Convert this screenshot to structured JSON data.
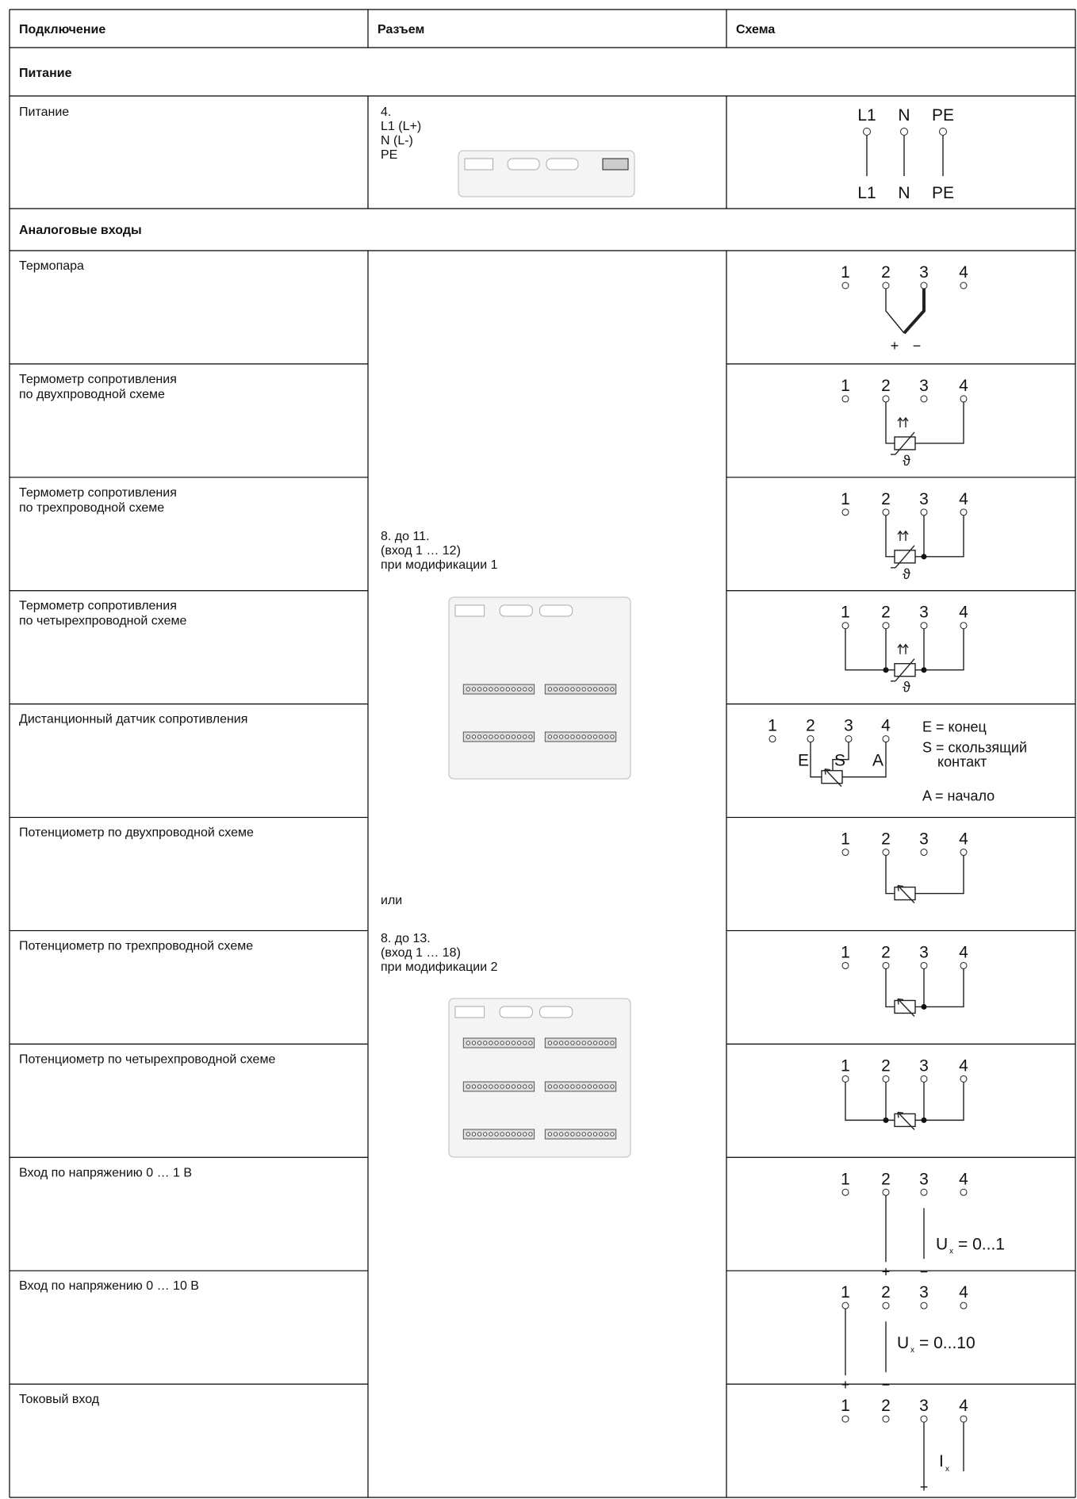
{
  "header": [
    "Подключение",
    "Разъем",
    "Схема"
  ],
  "sections": [
    {
      "title": "Питание",
      "rows": [
        {
          "connection": [
            "Питание"
          ],
          "connector": [
            "4.",
            "L1 (L+)",
            "N (L-)",
            "PE"
          ],
          "schema": {
            "top": [
              "L1",
              "N",
              "PE"
            ],
            "bottom": [
              "L1",
              "N",
              "PE"
            ]
          }
        }
      ]
    },
    {
      "title": "Аналоговые входы",
      "connector": [
        "8. до 11.",
        "(вход 1 … 12)",
        "при модификации 1",
        "или",
        "8. до 13.",
        "(вход 1 … 18)",
        "при модификации 2"
      ],
      "rows": [
        {
          "connection": [
            "Термопара"
          ],
          "schema": {
            "terminals": [
              "1",
              "2",
              "3",
              "4"
            ],
            "labels": [
              "+",
              "−"
            ]
          }
        },
        {
          "connection": [
            "Термометр сопротивления",
            "по двухпроводной схеме"
          ],
          "schema": {
            "terminals": [
              "1",
              "2",
              "3",
              "4"
            ],
            "labels": [
              "ϑ"
            ]
          }
        },
        {
          "connection": [
            "Термометр сопротивления",
            "по трехпроводной схеме"
          ],
          "schema": {
            "terminals": [
              "1",
              "2",
              "3",
              "4"
            ],
            "labels": [
              "ϑ"
            ]
          }
        },
        {
          "connection": [
            "Термометр сопротивления",
            "по четырехпроводной схеме"
          ],
          "schema": {
            "terminals": [
              "1",
              "2",
              "3",
              "4"
            ],
            "labels": [
              "ϑ"
            ]
          }
        },
        {
          "connection": [
            "Дистанционный датчик сопротивления"
          ],
          "schema": {
            "terminals": [
              "1",
              "2",
              "3",
              "4"
            ],
            "labels": [
              "E",
              "S",
              "A",
              "E = конец",
              "S = скользящий",
              "контакт",
              "A = начало"
            ]
          }
        },
        {
          "connection": [
            "Потенциометр по двухпроводной схеме"
          ],
          "schema": {
            "terminals": [
              "1",
              "2",
              "3",
              "4"
            ]
          }
        },
        {
          "connection": [
            "Потенциометр по трехпроводной схеме"
          ],
          "schema": {
            "terminals": [
              "1",
              "2",
              "3",
              "4"
            ]
          }
        },
        {
          "connection": [
            "Потенциометр по четырехпроводной схеме"
          ],
          "schema": {
            "terminals": [
              "1",
              "2",
              "3",
              "4"
            ]
          }
        },
        {
          "connection": [
            "Вход по напряжению 0 … 1 В"
          ],
          "schema": {
            "terminals": [
              "1",
              "2",
              "3",
              "4"
            ],
            "labels": [
              "+",
              "−",
              "U",
              "x",
              "= 0...1"
            ]
          }
        },
        {
          "connection": [
            "Вход по напряжению 0 … 10 В"
          ],
          "schema": {
            "terminals": [
              "1",
              "2",
              "3",
              "4"
            ],
            "labels": [
              "+",
              "−",
              "U",
              "x",
              "= 0...10"
            ]
          }
        },
        {
          "connection": [
            "Токовый вход"
          ],
          "schema": {
            "terminals": [
              "1",
              "2",
              "3",
              "4"
            ],
            "labels": [
              "I",
              "x",
              "+"
            ]
          }
        }
      ]
    }
  ]
}
